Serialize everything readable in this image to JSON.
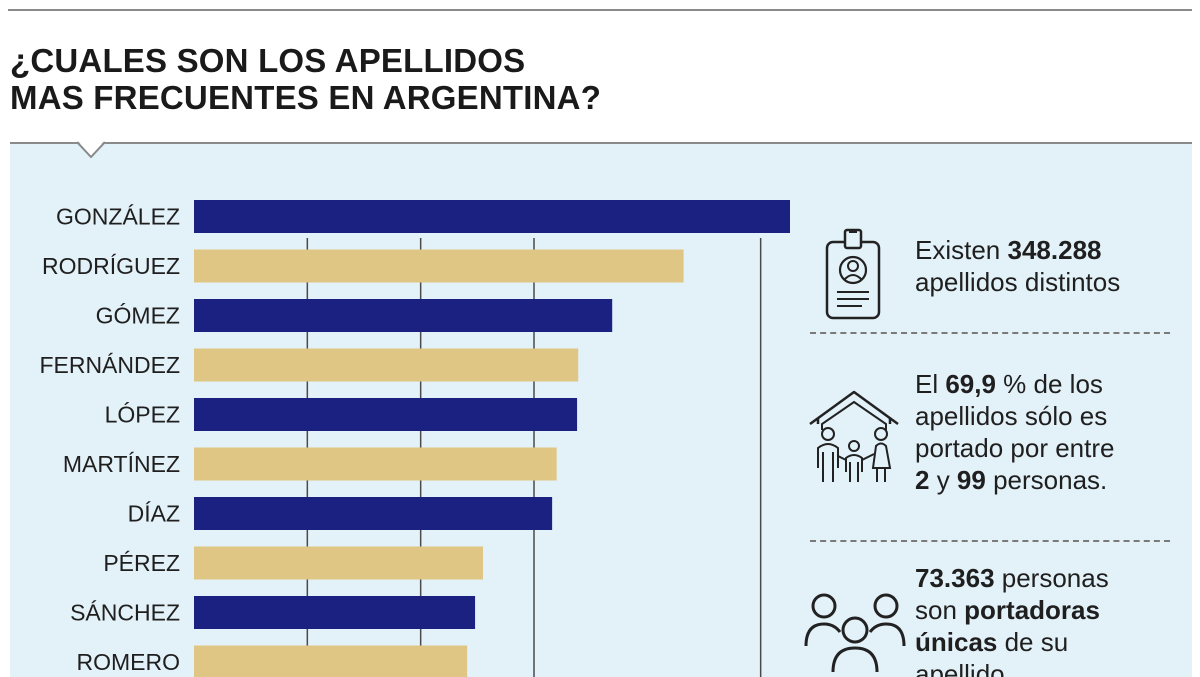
{
  "title": {
    "line1": "¿CUALES SON LOS APELLIDOS",
    "line2": "MAS FRECUENTES EN ARGENTINA?"
  },
  "colors": {
    "navy": "#1a2180",
    "sand": "#dfc685",
    "panel_bg": "#e3f1f8",
    "grid": "#4a4a4a",
    "text": "#1f1f1f"
  },
  "chart_data": {
    "type": "bar",
    "orientation": "horizontal",
    "categories": [
      "GONZÁLEZ",
      "RODRÍGUEZ",
      "GÓMEZ",
      "FERNÁNDEZ",
      "LÓPEZ",
      "MARTÍNEZ",
      "DÍAZ",
      "PÉREZ",
      "SÁNCHEZ",
      "ROMERO"
    ],
    "values": [
      540,
      432,
      369,
      339,
      338,
      320,
      316,
      255,
      248,
      241
    ],
    "bar_colors": [
      "navy",
      "sand",
      "navy",
      "sand",
      "navy",
      "sand",
      "navy",
      "sand",
      "navy",
      "sand"
    ],
    "xlim": [
      0,
      600
    ],
    "gridlines": [
      100,
      200,
      300,
      500
    ],
    "title": "¿CUALES SON LOS APELLIDOS MAS FRECUENTES EN ARGENTINA?",
    "xlabel": "",
    "ylabel": ""
  },
  "stats": [
    {
      "icon": "id-badge-icon",
      "parts": [
        [
          "Existen ",
          false
        ],
        [
          "348.288",
          true
        ],
        [
          "\n",
          false
        ],
        [
          "apellidos distintos",
          false
        ]
      ]
    },
    {
      "icon": "family-house-icon",
      "parts": [
        [
          "El ",
          false
        ],
        [
          "69,9",
          true
        ],
        [
          " % de los\napellidos sólo es\nportado por entre\n",
          false
        ],
        [
          "2",
          true
        ],
        [
          " y ",
          false
        ],
        [
          "99",
          true
        ],
        [
          " personas.",
          false
        ]
      ]
    },
    {
      "icon": "people-group-icon",
      "parts": [
        [
          "73.363",
          true
        ],
        [
          " personas\nson ",
          false
        ],
        [
          "portadoras\núnicas",
          true
        ],
        [
          " de su\napellido.",
          false
        ]
      ]
    }
  ]
}
